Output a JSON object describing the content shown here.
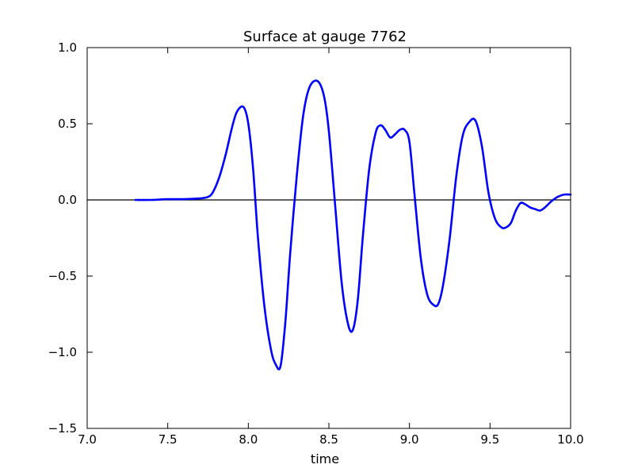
{
  "chart_data": {
    "type": "line",
    "title": "Surface at gauge 7762",
    "xlabel": "time",
    "ylabel": "",
    "xlim": [
      7.0,
      10.0
    ],
    "ylim": [
      -1.5,
      1.0
    ],
    "xticks": [
      "7.0",
      "7.5",
      "8.0",
      "8.5",
      "9.0",
      "9.5",
      "10.0"
    ],
    "yticks": [
      "1.0",
      "0.5",
      "0.0",
      "−0.5",
      "−1.0",
      "−1.5"
    ],
    "grid": false,
    "reference_line": {
      "y": 0.0,
      "color": "#000000"
    },
    "series": [
      {
        "color": "#0000ff",
        "x": [
          7.3,
          7.4,
          7.5,
          7.6,
          7.7,
          7.75,
          7.78,
          7.82,
          7.86,
          7.9,
          7.93,
          7.97,
          8.0,
          8.03,
          8.06,
          8.1,
          8.14,
          8.17,
          8.2,
          8.23,
          8.26,
          8.3,
          8.34,
          8.38,
          8.43,
          8.47,
          8.5,
          8.54,
          8.58,
          8.62,
          8.65,
          8.68,
          8.71,
          8.75,
          8.79,
          8.82,
          8.85,
          8.88,
          8.91,
          8.94,
          8.97,
          9.0,
          9.03,
          9.07,
          9.11,
          9.15,
          9.18,
          9.21,
          9.25,
          9.29,
          9.33,
          9.37,
          9.41,
          9.45,
          9.49,
          9.53,
          9.57,
          9.6,
          9.63,
          9.66,
          9.69,
          9.72,
          9.75,
          9.78,
          9.81,
          9.84,
          9.88,
          9.92,
          9.96,
          10.0
        ],
        "y": [
          0.0,
          0.0,
          0.005,
          0.005,
          0.01,
          0.02,
          0.05,
          0.15,
          0.3,
          0.48,
          0.58,
          0.61,
          0.5,
          0.2,
          -0.25,
          -0.7,
          -0.98,
          -1.08,
          -1.09,
          -0.8,
          -0.35,
          0.15,
          0.55,
          0.74,
          0.78,
          0.68,
          0.45,
          -0.05,
          -0.55,
          -0.82,
          -0.85,
          -0.65,
          -0.25,
          0.2,
          0.44,
          0.49,
          0.46,
          0.41,
          0.43,
          0.46,
          0.46,
          0.38,
          0.05,
          -0.38,
          -0.62,
          -0.69,
          -0.68,
          -0.55,
          -0.25,
          0.15,
          0.42,
          0.51,
          0.52,
          0.35,
          0.05,
          -0.12,
          -0.18,
          -0.18,
          -0.15,
          -0.07,
          -0.02,
          -0.03,
          -0.05,
          -0.06,
          -0.07,
          -0.05,
          -0.01,
          0.02,
          0.035,
          0.035
        ]
      }
    ]
  }
}
